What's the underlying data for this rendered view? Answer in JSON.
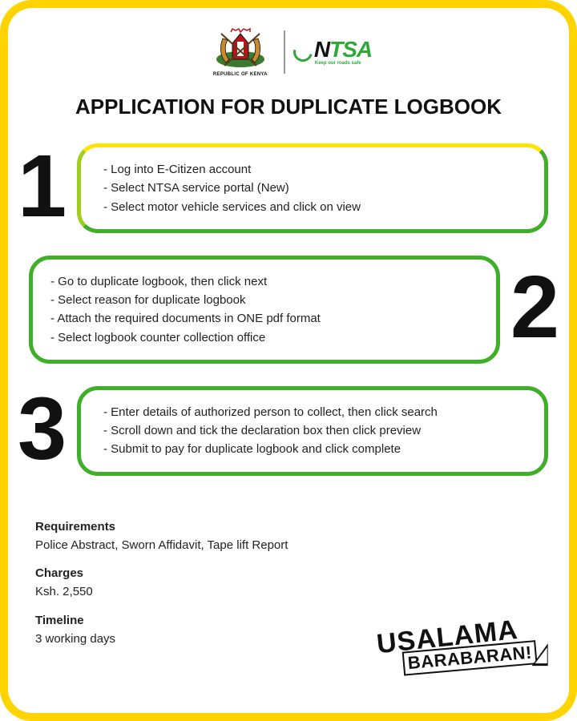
{
  "header": {
    "coa_label": "REPUBLIC OF KENYA",
    "ntsa_letters": {
      "n": "N",
      "rest": "TSA"
    },
    "ntsa_tagline": "Keep our roads safe"
  },
  "title": "APPLICATION FOR DUPLICATE LOGBOOK",
  "steps": [
    {
      "number": "1",
      "side": "left",
      "border_color": "#3fae29",
      "items": [
        "Log into E-Citizen account",
        "Select NTSA service portal (New)",
        "Select motor vehicle services and click on view"
      ]
    },
    {
      "number": "2",
      "side": "right",
      "border_color": "#3fae29",
      "items": [
        "Go to duplicate logbook, then click next",
        "Select reason for duplicate logbook",
        "Attach the required documents in ONE pdf format",
        "Select logbook counter collection office"
      ]
    },
    {
      "number": "3",
      "side": "left",
      "border_color": "#3fae29",
      "items": [
        "Enter details of authorized person to collect, then click search",
        "Scroll down and tick the declaration box then click preview",
        "Submit to pay for duplicate logbook and click complete"
      ]
    }
  ],
  "gradient_top": "#ffe400",
  "info": {
    "requirements_label": "Requirements",
    "requirements_value": "Police Abstract, Sworn Affidavit, Tape lift Report",
    "charges_label": "Charges",
    "charges_value": "Ksh. 2,550",
    "timeline_label": "Timeline",
    "timeline_value": "3 working days"
  },
  "stamp": {
    "line1": "USALAMA",
    "line2": "BARABARAN!"
  },
  "colors": {
    "frame": "#ffd400",
    "text": "#111111",
    "ntsa_green": "#2ea836"
  }
}
